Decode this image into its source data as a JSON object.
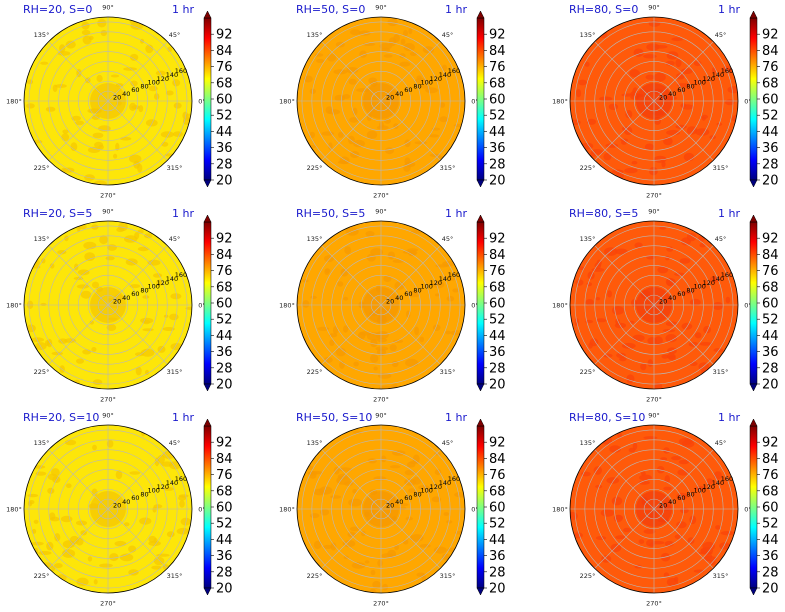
{
  "chart_data": [
    {
      "type": "polar-contour",
      "title": "RH=20, S=0",
      "time_label": "1 hr",
      "fill": "#fde609",
      "patch": "#f5c800",
      "center": "#f4c200",
      "angle_ticks": [
        "90°",
        "45°",
        "0°",
        "315°",
        "270°",
        "225°",
        "180°",
        "135°"
      ],
      "radial_ticks": [
        20,
        40,
        60,
        80,
        100,
        120,
        140,
        160
      ],
      "colorbar": {
        "min": 20,
        "max": 100,
        "ticks": [
          20,
          28,
          36,
          44,
          52,
          60,
          68,
          76,
          84,
          92
        ]
      }
    },
    {
      "type": "polar-contour",
      "title": "RH=50, S=0",
      "time_label": "1 hr",
      "fill": "#ffa700",
      "patch": "#f79a00",
      "center": "#f59500",
      "angle_ticks": [
        "90°",
        "45°",
        "0°",
        "315°",
        "270°",
        "225°",
        "180°",
        "135°"
      ],
      "radial_ticks": [
        20,
        40,
        60,
        80,
        100,
        120,
        140,
        160
      ],
      "colorbar": {
        "min": 20,
        "max": 100,
        "ticks": [
          20,
          28,
          36,
          44,
          52,
          60,
          68,
          76,
          84,
          92
        ]
      }
    },
    {
      "type": "polar-contour",
      "title": "RH=80, S=0",
      "time_label": "1 hr",
      "fill": "#ff5a0a",
      "patch": "#f9440a",
      "center": "#f23a0a",
      "angle_ticks": [
        "90°",
        "45°",
        "0°",
        "315°",
        "270°",
        "225°",
        "180°",
        "135°"
      ],
      "radial_ticks": [
        20,
        40,
        60,
        80,
        100,
        120,
        140,
        160
      ],
      "colorbar": {
        "min": 20,
        "max": 100,
        "ticks": [
          20,
          28,
          36,
          44,
          52,
          60,
          68,
          76,
          84,
          92
        ]
      }
    },
    {
      "type": "polar-contour",
      "title": "RH=20, S=5",
      "time_label": "1 hr",
      "fill": "#fde609",
      "patch": "#f5c800",
      "center": "#f4c200",
      "angle_ticks": [
        "90°",
        "45°",
        "0°",
        "315°",
        "270°",
        "225°",
        "180°",
        "135°"
      ],
      "radial_ticks": [
        20,
        40,
        60,
        80,
        100,
        120,
        140,
        160
      ],
      "colorbar": {
        "min": 20,
        "max": 100,
        "ticks": [
          20,
          28,
          36,
          44,
          52,
          60,
          68,
          76,
          84,
          92
        ]
      }
    },
    {
      "type": "polar-contour",
      "title": "RH=50, S=5",
      "time_label": "1 hr",
      "fill": "#ffa700",
      "patch": "#f79a00",
      "center": "#f59500",
      "angle_ticks": [
        "90°",
        "45°",
        "0°",
        "315°",
        "270°",
        "225°",
        "180°",
        "135°"
      ],
      "radial_ticks": [
        20,
        40,
        60,
        80,
        100,
        120,
        140,
        160
      ],
      "colorbar": {
        "min": 20,
        "max": 100,
        "ticks": [
          20,
          28,
          36,
          44,
          52,
          60,
          68,
          76,
          84,
          92
        ]
      }
    },
    {
      "type": "polar-contour",
      "title": "RH=80, S=5",
      "time_label": "1 hr",
      "fill": "#ff5a0a",
      "patch": "#f9440a",
      "center": "#f23a0a",
      "angle_ticks": [
        "90°",
        "45°",
        "0°",
        "315°",
        "270°",
        "225°",
        "180°",
        "135°"
      ],
      "radial_ticks": [
        20,
        40,
        60,
        80,
        100,
        120,
        140,
        160
      ],
      "colorbar": {
        "min": 20,
        "max": 100,
        "ticks": [
          20,
          28,
          36,
          44,
          52,
          60,
          68,
          76,
          84,
          92
        ]
      }
    },
    {
      "type": "polar-contour",
      "title": "RH=20, S=10",
      "time_label": "1 hr",
      "fill": "#fde609",
      "patch": "#f5c800",
      "center": "#f4c200",
      "angle_ticks": [
        "90°",
        "45°",
        "0°",
        "315°",
        "270°",
        "225°",
        "180°",
        "135°"
      ],
      "radial_ticks": [
        20,
        40,
        60,
        80,
        100,
        120,
        140,
        160
      ],
      "colorbar": {
        "min": 20,
        "max": 100,
        "ticks": [
          20,
          28,
          36,
          44,
          52,
          60,
          68,
          76,
          84,
          92
        ]
      }
    },
    {
      "type": "polar-contour",
      "title": "RH=50, S=10",
      "time_label": "1 hr",
      "fill": "#ffa700",
      "patch": "#f79a00",
      "center": "#f59500",
      "angle_ticks": [
        "90°",
        "45°",
        "0°",
        "315°",
        "270°",
        "225°",
        "180°",
        "135°"
      ],
      "radial_ticks": [
        20,
        40,
        60,
        80,
        100,
        120,
        140,
        160
      ],
      "colorbar": {
        "min": 20,
        "max": 100,
        "ticks": [
          20,
          28,
          36,
          44,
          52,
          60,
          68,
          76,
          84,
          92
        ]
      }
    },
    {
      "type": "polar-contour",
      "title": "RH=80, S=10",
      "time_label": "1 hr",
      "fill": "#ff5a0a",
      "patch": "#f9440a",
      "center": "#f23a0a",
      "angle_ticks": [
        "90°",
        "45°",
        "0°",
        "315°",
        "270°",
        "225°",
        "180°",
        "135°"
      ],
      "radial_ticks": [
        20,
        40,
        60,
        80,
        100,
        120,
        140,
        160
      ],
      "colorbar": {
        "min": 20,
        "max": 100,
        "ticks": [
          20,
          28,
          36,
          44,
          52,
          60,
          68,
          76,
          84,
          92
        ]
      }
    }
  ],
  "colormap": [
    "#00007f",
    "#0000ff",
    "#007fff",
    "#00ffff",
    "#7fff7f",
    "#ffff00",
    "#ff7f00",
    "#ff0000",
    "#7f0000"
  ]
}
